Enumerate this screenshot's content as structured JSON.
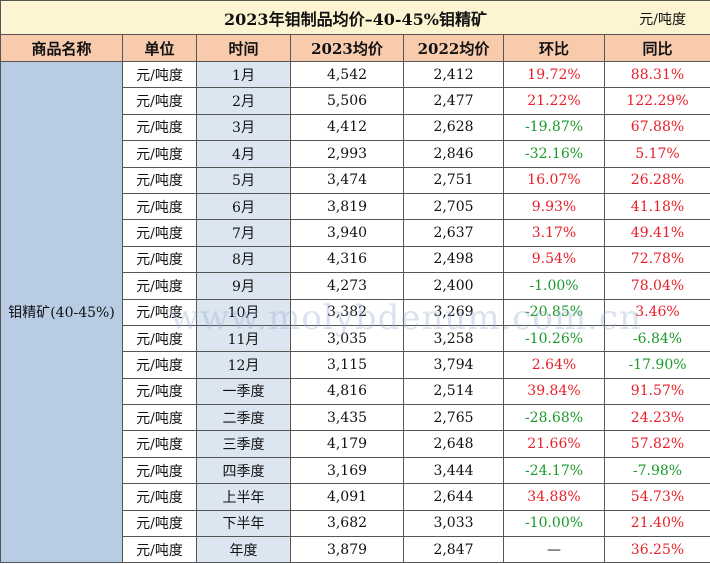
{
  "header": {
    "title": "2023年钼制品均价–40-45%钼精矿",
    "unit": "元/吨度"
  },
  "table": {
    "columns": [
      "商品名称",
      "单位",
      "时间",
      "2023均价",
      "2022均价",
      "环比",
      "同比"
    ],
    "product": "钼精矿(40-45%)",
    "rows": [
      [
        "元/吨度",
        "1月",
        "4,542",
        "2,412",
        "19.72%",
        "88.31%"
      ],
      [
        "元/吨度",
        "2月",
        "5,506",
        "2,477",
        "21.22%",
        "122.29%"
      ],
      [
        "元/吨度",
        "3月",
        "4,412",
        "2,628",
        "-19.87%",
        "67.88%"
      ],
      [
        "元/吨度",
        "4月",
        "2,993",
        "2,846",
        "-32.16%",
        "5.17%"
      ],
      [
        "元/吨度",
        "5月",
        "3,474",
        "2,751",
        "16.07%",
        "26.28%"
      ],
      [
        "元/吨度",
        "6月",
        "3,819",
        "2,705",
        "9.93%",
        "41.18%"
      ],
      [
        "元/吨度",
        "7月",
        "3,940",
        "2,637",
        "3.17%",
        "49.41%"
      ],
      [
        "元/吨度",
        "8月",
        "4,316",
        "2,498",
        "9.54%",
        "72.78%"
      ],
      [
        "元/吨度",
        "9月",
        "4,273",
        "2,400",
        "-1.00%",
        "78.04%"
      ],
      [
        "元/吨度",
        "10月",
        "3,382",
        "3,269",
        "-20.85%",
        "3.46%"
      ],
      [
        "元/吨度",
        "11月",
        "3,035",
        "3,258",
        "-10.26%",
        "-6.84%"
      ],
      [
        "元/吨度",
        "12月",
        "3,115",
        "3,794",
        "2.64%",
        "-17.90%"
      ],
      [
        "元/吨度",
        "一季度",
        "4,816",
        "2,514",
        "39.84%",
        "91.57%"
      ],
      [
        "元/吨度",
        "二季度",
        "3,435",
        "2,765",
        "-28.68%",
        "24.23%"
      ],
      [
        "元/吨度",
        "三季度",
        "4,179",
        "2,648",
        "21.66%",
        "57.82%"
      ],
      [
        "元/吨度",
        "四季度",
        "3,169",
        "3,444",
        "-24.17%",
        "-7.98%"
      ],
      [
        "元/吨度",
        "上半年",
        "4,091",
        "2,644",
        "34.88%",
        "54.73%"
      ],
      [
        "元/吨度",
        "下半年",
        "3,682",
        "3,033",
        "-10.00%",
        "21.40%"
      ],
      [
        "元/吨度",
        "年度",
        "3,879",
        "2,847",
        "—",
        "36.25%"
      ]
    ]
  },
  "watermark": "www.molybdenum.com.cn"
}
